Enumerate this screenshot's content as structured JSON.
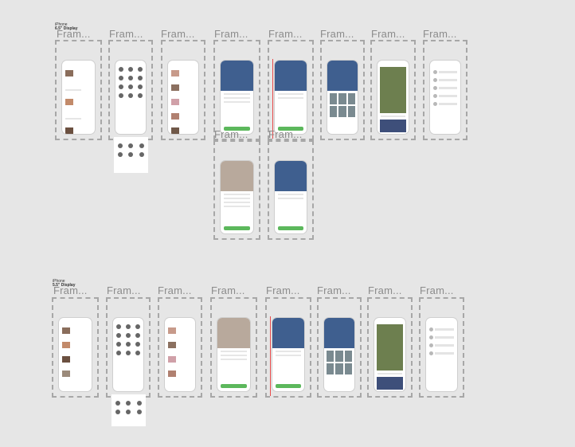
{
  "sections": [
    {
      "device": "iPhone",
      "display": "6.5\" Display"
    },
    {
      "device": "iPhone",
      "display": "5.5\" Display"
    }
  ],
  "frame_label": "Fram...",
  "colors": {
    "canvas": "#e6e6e6",
    "caption": "#4caf50",
    "accent": "#5cb85c",
    "frame_border": "#a7a7a7"
  }
}
